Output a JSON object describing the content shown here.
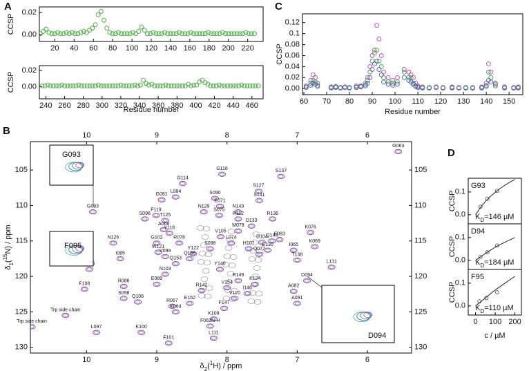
{
  "chart_data": [
    {
      "type": "scatter",
      "panel": "A",
      "ylabel": "CCSP",
      "color": "#3aa832",
      "xlim": [
        4,
        236
      ],
      "ylim": [
        -0.006,
        0.025
      ],
      "xticks": [
        20,
        40,
        60,
        80,
        100,
        120,
        140,
        160,
        180,
        200,
        220
      ],
      "yticks": [
        {
          "value": 0,
          "label": "0.00"
        },
        0.02
      ],
      "x": [
        2,
        5,
        8,
        11,
        14,
        17,
        20,
        23,
        26,
        29,
        32,
        35,
        38,
        41,
        44,
        47,
        50,
        53,
        56,
        59,
        62,
        65,
        68,
        71,
        74,
        77,
        80,
        83,
        86,
        89,
        92,
        95,
        98,
        101,
        104,
        107,
        110,
        113,
        116,
        119,
        122,
        125,
        128,
        131,
        134,
        137,
        140,
        143,
        146,
        149,
        152,
        155,
        158,
        161,
        164,
        167,
        170,
        173,
        176,
        179,
        182,
        185,
        188,
        191,
        194,
        197,
        200,
        203,
        206,
        209,
        212,
        215,
        218,
        221,
        224,
        227
      ],
      "values": [
        0.002,
        0.001,
        0.003,
        0.005,
        0.002,
        0.001,
        0.001,
        0.002,
        0.001,
        0.001,
        0.002,
        0.001,
        0.002,
        0.001,
        0.001,
        0.002,
        0.003,
        0.002,
        0.004,
        0.006,
        0.009,
        0.018,
        0.021,
        0.013,
        0.006,
        0.002,
        0.001,
        0.001,
        0.002,
        0.001,
        0.001,
        0.001,
        0.001,
        0.002,
        0.001,
        0.003,
        0.007,
        0.004,
        0.001,
        0.001,
        0.002,
        0.001,
        0.001,
        0.001,
        0.002,
        0.001,
        0.001,
        0.001,
        0.001,
        0.002,
        0.001,
        0.001,
        0.001,
        0.002,
        0.001,
        0.001,
        0.001,
        0.001,
        0.001,
        0.002,
        0.001,
        0.001,
        0.001,
        0.001,
        0.002,
        0.001,
        0.001,
        0.001,
        0.001,
        0.001,
        0.001,
        0.001,
        0.002,
        0.001,
        0.001,
        0.001
      ]
    },
    {
      "type": "scatter",
      "ylabel": "CCSP",
      "xlabel": "Residue number",
      "color": "#3aa832",
      "xlim": [
        233,
        472
      ],
      "ylim": [
        -0.015,
        0.026
      ],
      "xticks": [
        240,
        260,
        280,
        300,
        320,
        340,
        360,
        380,
        400,
        420,
        440,
        460
      ],
      "yticks": [
        {
          "value": 0,
          "label": "0.00"
        },
        0.02
      ],
      "x": [
        236,
        239,
        242,
        245,
        248,
        251,
        254,
        257,
        260,
        263,
        266,
        269,
        272,
        275,
        278,
        281,
        284,
        287,
        290,
        293,
        296,
        299,
        302,
        305,
        308,
        311,
        314,
        317,
        320,
        323,
        326,
        329,
        332,
        335,
        338,
        341,
        344,
        347,
        350,
        353,
        356,
        359,
        362,
        365,
        368,
        371,
        374,
        377,
        380,
        383,
        386,
        389,
        392,
        395,
        398,
        401,
        404,
        407,
        410,
        413,
        416,
        419,
        422,
        425,
        428,
        431,
        434,
        437,
        440,
        443,
        446,
        449,
        452,
        455,
        458,
        461,
        464,
        467
      ],
      "values": [
        0.001,
        0.001,
        0.002,
        0.001,
        0.001,
        0.001,
        0.001,
        0.002,
        0.001,
        0.001,
        0.001,
        0.001,
        0.001,
        0.002,
        0.001,
        0.001,
        0.001,
        0.001,
        0.001,
        0.001,
        0.002,
        0.001,
        0.001,
        0.001,
        0.001,
        0.001,
        0.001,
        0.001,
        0.002,
        0.001,
        0.001,
        0.001,
        0.001,
        0.002,
        0.001,
        0.002,
        0.008,
        0.004,
        0.002,
        0.003,
        0.001,
        0.001,
        0.001,
        0.001,
        0.002,
        0.001,
        0.001,
        0.001,
        0.001,
        0.001,
        0.001,
        0.001,
        0.003,
        0.001,
        0.002,
        0.002,
        0.006,
        0.008,
        0.005,
        0.003,
        0.001,
        0.001,
        0.001,
        0.002,
        0.001,
        0.001,
        0.001,
        0.001,
        0.001,
        0.001,
        0.001,
        0.002,
        0.001,
        0.001,
        0.001,
        0.001,
        0.001,
        0.001
      ]
    },
    {
      "type": "scatter",
      "panel": "C",
      "ylabel": "CCSP",
      "xlabel": "Residue number",
      "xlim": [
        59.4,
        156
      ],
      "ylim": [
        -0.011,
        0.136
      ],
      "xticks": [
        60,
        70,
        80,
        90,
        100,
        110,
        120,
        130,
        140,
        150
      ],
      "yticks": [
        {
          "value": 0,
          "label": "0.00"
        },
        0.02,
        0.04,
        0.06,
        0.08,
        0.1,
        0.12
      ],
      "x": [
        61,
        63,
        64,
        65,
        66,
        72,
        74,
        76,
        78,
        80,
        83,
        85,
        87,
        88,
        89,
        90,
        91,
        92,
        93,
        94,
        95,
        97,
        99,
        101,
        104,
        106,
        107,
        108,
        109,
        110,
        112,
        115,
        118,
        121,
        125,
        128,
        131,
        134,
        138,
        140,
        141,
        142,
        144,
        148,
        152,
        154
      ],
      "series": [
        {
          "color": "#c03cc0",
          "values": [
            0.005,
            0.015,
            0.025,
            0.02,
            0.01,
            0.003,
            0.004,
            0.002,
            0.003,
            0.002,
            0.005,
            0.005,
            0.01,
            0.02,
            0.04,
            0.06,
            0.07,
            0.115,
            0.09,
            0.06,
            0.03,
            0.02,
            0.015,
            0.02,
            0.035,
            0.03,
            0.025,
            0.02,
            0.01,
            0.005,
            0.003,
            0.002,
            0.003,
            0.002,
            0.003,
            0.002,
            0.002,
            0.002,
            0.003,
            0.01,
            0.045,
            0.03,
            0.01,
            0.003,
            0.002,
            0.003
          ]
        },
        {
          "color": "#3aa832",
          "values": [
            0.003,
            0.01,
            0.015,
            0.012,
            0.006,
            0.002,
            0.003,
            0.002,
            0.002,
            0.002,
            0.003,
            0.004,
            0.007,
            0.015,
            0.03,
            0.05,
            0.065,
            0.07,
            0.05,
            0.04,
            0.02,
            0.012,
            0.01,
            0.012,
            0.03,
            0.02,
            0.02,
            0.01,
            0.005,
            0.003,
            0.002,
            0.002,
            0.002,
            0.001,
            0.002,
            0.001,
            0.002,
            0.001,
            0.002,
            0.006,
            0.03,
            0.02,
            0.008,
            0.002,
            0.001,
            0.002
          ]
        },
        {
          "color": "#4a5cc0",
          "values": [
            0.002,
            0.006,
            0.01,
            0.008,
            0.004,
            0.001,
            0.002,
            0.001,
            0.002,
            0.001,
            0.002,
            0.003,
            0.005,
            0.01,
            0.02,
            0.035,
            0.045,
            0.05,
            0.035,
            0.025,
            0.012,
            0.008,
            0.006,
            0.008,
            0.02,
            0.015,
            0.012,
            0.008,
            0.004,
            0.002,
            0.001,
            0.001,
            0.002,
            0.001,
            0.001,
            0.001,
            0.001,
            0.001,
            0.001,
            0.004,
            0.015,
            0.012,
            0.005,
            0.001,
            0.001,
            0.001
          ]
        }
      ]
    },
    {
      "type": "spectrum",
      "panel": "B",
      "color": "#b0309a",
      "xlabel": [
        "δ",
        "2",
        "(",
        "1",
        "H) / ppm"
      ],
      "ylabel": [
        "δ",
        "1",
        "(",
        "15",
        "N) / ppm"
      ],
      "xlim": [
        10.8,
        5.37
      ],
      "ylim": [
        130.8,
        101
      ],
      "xticks": [
        10,
        9,
        8,
        7,
        6
      ],
      "yticks": [
        105,
        110,
        115,
        120,
        125,
        130
      ],
      "inset_labels": [
        "G093",
        "F095",
        "D094"
      ],
      "peaks": [
        {
          "label": "G116",
          "x": 8.07,
          "y": 105.6
        },
        {
          "label": "G114",
          "x": 8.63,
          "y": 106.9
        },
        {
          "label": "S137",
          "x": 7.23,
          "y": 105.9
        },
        {
          "label": "G063",
          "x": 5.56,
          "y": 102.4
        },
        {
          "label": "S127",
          "x": 7.55,
          "y": 108
        },
        {
          "label": "S141",
          "x": 7.54,
          "y": 109.3
        },
        {
          "label": "G081",
          "x": 8.93,
          "y": 109.2
        },
        {
          "label": "L084",
          "x": 8.73,
          "y": 108.8
        },
        {
          "label": "S090",
          "x": 8.17,
          "y": 109
        },
        {
          "label": "E071",
          "x": 8.1,
          "y": 110.1
        },
        {
          "label": "N143",
          "x": 7.84,
          "y": 110.9
        },
        {
          "label": "N129",
          "x": 8.33,
          "y": 110.9
        },
        {
          "label": "S075",
          "x": 8.11,
          "y": 111.4
        },
        {
          "label": "F119",
          "x": 9.01,
          "y": 111.4
        },
        {
          "label": "S096",
          "x": 9.17,
          "y": 111.9
        },
        {
          "label": "T125",
          "x": 8.88,
          "y": 112.1
        },
        {
          "label": "A068",
          "x": 8.9,
          "y": 113.4
        },
        {
          "label": "Y118",
          "x": 8.82,
          "y": 113.9
        },
        {
          "label": "R136",
          "x": 7.35,
          "y": 111.9
        },
        {
          "label": "F083",
          "x": 7.25,
          "y": 114.8
        },
        {
          "label": "K076",
          "x": 6.81,
          "y": 113.8
        },
        {
          "label": "K069",
          "x": 6.75,
          "y": 115.8
        },
        {
          "label": "I065",
          "x": 7.05,
          "y": 116.3
        },
        {
          "label": "T138",
          "x": 7,
          "y": 117.7
        },
        {
          "label": "L131",
          "x": 6.51,
          "y": 118.7
        },
        {
          "label": "Q077",
          "x": 7.54,
          "y": 116.9
        },
        {
          "label": "E130",
          "x": 7.42,
          "y": 116.3
        },
        {
          "label": "D094",
          "x": 6.86,
          "y": 120.6
        },
        {
          "label": "N126",
          "x": 9.62,
          "y": 115.3
        },
        {
          "label": "I085",
          "x": 9.52,
          "y": 117.5
        },
        {
          "label": "F095",
          "x": 9.96,
          "y": 119
        },
        {
          "label": "F108",
          "x": 10.03,
          "y": 121.8
        },
        {
          "label": "R086",
          "x": 9.47,
          "y": 121.4
        },
        {
          "label": "S098",
          "x": 9.47,
          "y": 123.1
        },
        {
          "label": "Q106",
          "x": 9.27,
          "y": 123.6
        },
        {
          "label": "E089",
          "x": 9,
          "y": 121.1
        },
        {
          "label": "N103",
          "x": 8.88,
          "y": 119.7
        },
        {
          "label": "Q153",
          "x": 8.73,
          "y": 118.2
        },
        {
          "label": "R067",
          "x": 8.78,
          "y": 124.2
        },
        {
          "label": "K064",
          "x": 8.73,
          "y": 125
        },
        {
          "label": "E152",
          "x": 8.53,
          "y": 123.8
        },
        {
          "label": "K109",
          "x": 8.19,
          "y": 126
        },
        {
          "label": "F062N-H",
          "x": 8.24,
          "y": 127
        },
        {
          "label": "F147",
          "x": 8.04,
          "y": 124.5
        },
        {
          "label": "R142",
          "x": 8.36,
          "y": 122
        },
        {
          "label": "V154",
          "x": 8,
          "y": 121.6
        },
        {
          "label": "V110",
          "x": 7.89,
          "y": 123.1
        },
        {
          "label": "I146",
          "x": 7.71,
          "y": 122.4
        },
        {
          "label": "R149",
          "x": 7.84,
          "y": 120.6
        },
        {
          "label": "K124",
          "x": 7.6,
          "y": 121.1
        },
        {
          "label": "A082",
          "x": 7.05,
          "y": 122.1
        },
        {
          "label": "A091",
          "x": 7,
          "y": 123.8
        },
        {
          "label": "L097",
          "x": 9.86,
          "y": 127.9
        },
        {
          "label": "K100",
          "x": 9.22,
          "y": 127.9
        },
        {
          "label": "F101",
          "x": 8.83,
          "y": 129.4
        },
        {
          "label": "L111",
          "x": 8.19,
          "y": 128.7
        },
        {
          "label": "W121",
          "x": 8.98,
          "y": 116.6
        },
        {
          "label": "V099",
          "x": 8.88,
          "y": 117.2
        },
        {
          "label": "G102",
          "x": 9,
          "y": 115.3
        },
        {
          "label": "R078",
          "x": 8.68,
          "y": 115.3
        },
        {
          "label": "Y122",
          "x": 8.48,
          "y": 116.8
        },
        {
          "label": "Q156",
          "x": 8.53,
          "y": 117.5
        },
        {
          "label": "S088",
          "x": 8.24,
          "y": 116.1
        },
        {
          "label": "V105",
          "x": 8.09,
          "y": 114.4
        },
        {
          "label": "L074",
          "x": 7.94,
          "y": 115.3
        },
        {
          "label": "H107",
          "x": 7.69,
          "y": 116.1
        },
        {
          "label": "D133",
          "x": 7.65,
          "y": 112.9
        },
        {
          "label": "M079",
          "x": 7.84,
          "y": 113.6
        },
        {
          "label": "R112",
          "x": 7.84,
          "y": 111.9
        },
        {
          "label": "Q144",
          "x": 7.36,
          "y": 115
        },
        {
          "label": "D104",
          "x": 7.5,
          "y": 115.2
        },
        {
          "label": "Y140",
          "x": 8.1,
          "y": 119
        },
        {
          "label": "G093",
          "x": 9.91,
          "y": 110.9
        },
        {
          "label": "Trp side chain",
          "x": 10.3,
          "y": 125.5
        },
        {
          "label": "Trp side chain",
          "x": 10.78,
          "y": 127.1
        }
      ]
    },
    {
      "type": "scatter",
      "panel": "D",
      "name": "G93",
      "ylabel": "CCSP",
      "kd": [
        "K",
        "D",
        "=146 µM"
      ],
      "color": "#555555",
      "xlim": [
        -37,
        233
      ],
      "ylim": [
        -0.04,
        0.16
      ],
      "yticks": [
        {
          "value": 0,
          "label": "0.0"
        },
        0.1
      ],
      "x": [
        25,
        60,
        110
      ],
      "values": [
        0.035,
        0.07,
        0.105
      ],
      "fit": {
        "x": [
          0,
          25,
          50,
          75,
          100,
          125,
          150,
          175,
          200
        ],
        "values": [
          0,
          0.032,
          0.058,
          0.08,
          0.098,
          0.115,
          0.13,
          0.143,
          0.155
        ]
      }
    },
    {
      "type": "scatter",
      "name": "D94",
      "ylabel": "CCSP",
      "kd": [
        "K",
        "D",
        "=184 µM"
      ],
      "color": "#555555",
      "xlim": [
        -37,
        233
      ],
      "ylim": [
        -0.04,
        0.16
      ],
      "yticks": [
        {
          "value": 0,
          "label": "0.0"
        },
        0.1
      ],
      "x": [
        25,
        60,
        110
      ],
      "values": [
        0.015,
        0.035,
        0.065
      ],
      "fit": {
        "x": [
          0,
          50,
          100,
          150,
          200
        ],
        "values": [
          0,
          0.03,
          0.058,
          0.08,
          0.1
        ]
      }
    },
    {
      "type": "scatter",
      "name": "F95",
      "ylabel": "CCSP",
      "xlabel": "c / µM",
      "kd": [
        "K",
        "D",
        "=110 µM"
      ],
      "color": "#555555",
      "xlim": [
        -37,
        233
      ],
      "ylim": [
        -0.04,
        0.16
      ],
      "xticks": [
        0,
        100,
        200
      ],
      "yticks": [
        {
          "value": 0,
          "label": "0.0"
        },
        0.1
      ],
      "x": [
        20,
        55,
        110
      ],
      "values": [
        0.02,
        0.035,
        0.06
      ],
      "fit": {
        "x": [
          0,
          50,
          100,
          150,
          200
        ],
        "values": [
          0,
          0.035,
          0.07,
          0.1,
          0.13
        ]
      }
    }
  ]
}
